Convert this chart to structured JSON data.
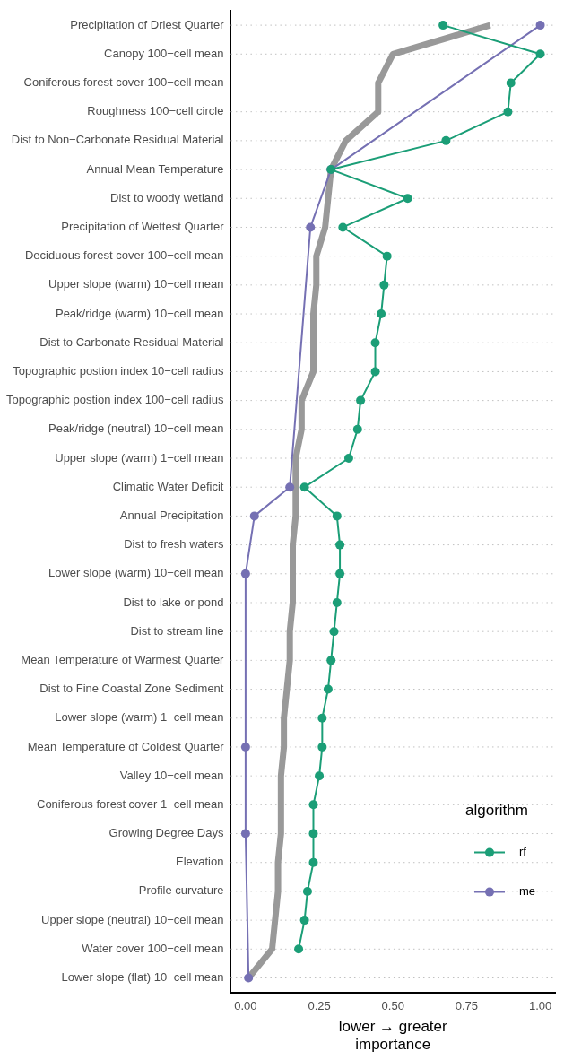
{
  "chart_data": {
    "type": "line",
    "orientation": "horizontal",
    "categories": [
      "Precipitation of Driest Quarter",
      "Canopy 100−cell mean",
      "Coniferous forest cover 100−cell mean",
      "Roughness 100−cell circle",
      "Dist to Non−Carbonate Residual Material",
      "Annual Mean Temperature",
      "Dist to woody wetland",
      "Precipitation of Wettest Quarter",
      "Deciduous forest cover 100−cell mean",
      "Upper slope (warm) 10−cell mean",
      "Peak/ridge (warm) 10−cell mean",
      "Dist to Carbonate Residual Material",
      "Topographic postion index 10−cell radius",
      "Topographic postion index 100−cell radius",
      "Peak/ridge (neutral) 10−cell mean",
      "Upper slope (warm) 1−cell mean",
      "Climatic Water Deficit",
      "Annual Precipitation",
      "Dist to fresh waters",
      "Lower slope (warm) 10−cell mean",
      "Dist to lake or pond",
      "Dist to stream line",
      "Mean Temperature of Warmest Quarter",
      "Dist to Fine Coastal Zone Sediment",
      "Lower slope (warm) 1−cell mean",
      "Mean Temperature of Coldest Quarter",
      "Valley 10−cell mean",
      "Coniferous forest cover 1−cell mean",
      "Growing Degree Days",
      "Elevation",
      "Profile curvature",
      "Upper slope (neutral) 10−cell mean",
      "Water cover 100−cell mean",
      "Lower slope (flat) 10−cell mean"
    ],
    "series": [
      {
        "name": "rf",
        "color": "#1b9e77",
        "marker": "circle",
        "values": [
          0.67,
          1.0,
          0.9,
          0.89,
          0.68,
          0.29,
          0.55,
          0.33,
          0.48,
          0.47,
          0.46,
          0.44,
          0.44,
          0.39,
          0.38,
          0.35,
          0.2,
          0.31,
          0.32,
          0.32,
          0.31,
          0.3,
          0.29,
          0.28,
          0.26,
          0.26,
          0.25,
          0.23,
          0.23,
          0.23,
          0.21,
          0.2,
          0.18,
          null
        ]
      },
      {
        "name": "me",
        "color": "#7570b3",
        "marker": "circle",
        "values": [
          1.0,
          null,
          null,
          null,
          null,
          0.29,
          null,
          0.22,
          null,
          null,
          null,
          null,
          null,
          null,
          null,
          null,
          0.15,
          0.03,
          null,
          0.0,
          null,
          null,
          null,
          null,
          null,
          0.0,
          null,
          null,
          0.0,
          null,
          null,
          null,
          null,
          0.01
        ]
      },
      {
        "color": "#999999",
        "marker": "none",
        "values": [
          0.83,
          0.5,
          0.45,
          0.45,
          0.34,
          0.29,
          0.28,
          0.27,
          0.24,
          0.24,
          0.23,
          0.23,
          0.23,
          0.19,
          0.19,
          0.17,
          0.17,
          0.17,
          0.16,
          0.16,
          0.16,
          0.15,
          0.15,
          0.14,
          0.13,
          0.13,
          0.12,
          0.12,
          0.12,
          0.11,
          0.11,
          0.1,
          0.09,
          0.01
        ]
      }
    ],
    "xlim": [
      -0.05,
      1.05
    ],
    "xticks": [
      {
        "value": 0,
        "label": "0.00"
      },
      {
        "value": 0.25,
        "label": "0.25"
      },
      {
        "value": 0.5,
        "label": "0.50"
      },
      {
        "value": 0.75,
        "label": "0.75"
      },
      {
        "value": 1,
        "label": "1.00"
      }
    ],
    "xlabel": "lower → greater\nimportance",
    "legend_title": "algorithm",
    "legend": "bottom right",
    "grid": "y"
  }
}
